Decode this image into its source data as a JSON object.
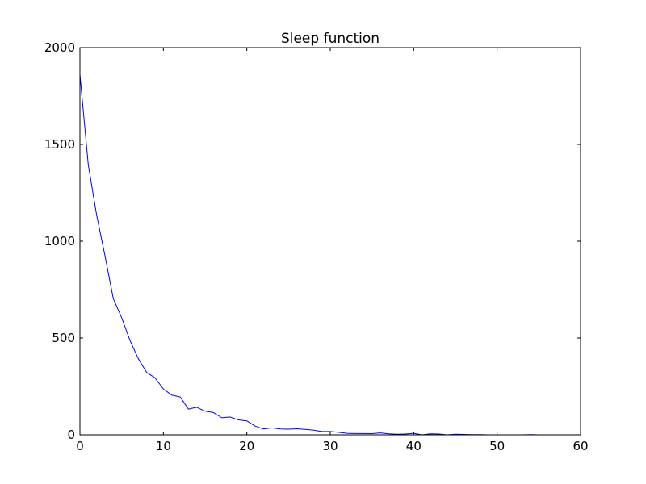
{
  "chart_data": {
    "type": "line",
    "title": "Sleep function",
    "xlabel": "",
    "ylabel": "",
    "xlim": [
      0,
      60
    ],
    "ylim": [
      0,
      2000
    ],
    "x_ticks": [
      0,
      10,
      20,
      30,
      40,
      50,
      60
    ],
    "y_ticks": [
      0,
      500,
      1000,
      1500,
      2000
    ],
    "grid": false,
    "series": [
      {
        "color": "#0000ff",
        "x": [
          0,
          1,
          2,
          3,
          4,
          5,
          6,
          7,
          8,
          9,
          10,
          11,
          12,
          13,
          14,
          15,
          16,
          17,
          18,
          19,
          20,
          21,
          22,
          23,
          24,
          25,
          26,
          27,
          28,
          29,
          30,
          31,
          32,
          33,
          34,
          35,
          36,
          37,
          38,
          39,
          40,
          41,
          42,
          43,
          44,
          45,
          46,
          47,
          48,
          49,
          50,
          51,
          52,
          53,
          54,
          55
        ],
        "y": [
          1860,
          1395,
          1135,
          925,
          703,
          605,
          487,
          393,
          322,
          294,
          237,
          205,
          196,
          133,
          142,
          122,
          115,
          88,
          92,
          77,
          72,
          45,
          30,
          36,
          30,
          29,
          31,
          28,
          24,
          17,
          17,
          13,
          8,
          7,
          7,
          6,
          10,
          5,
          3,
          4,
          8,
          0,
          5,
          4,
          0,
          3,
          2,
          1,
          1,
          0,
          0,
          0,
          0,
          0,
          1,
          0
        ]
      }
    ]
  }
}
